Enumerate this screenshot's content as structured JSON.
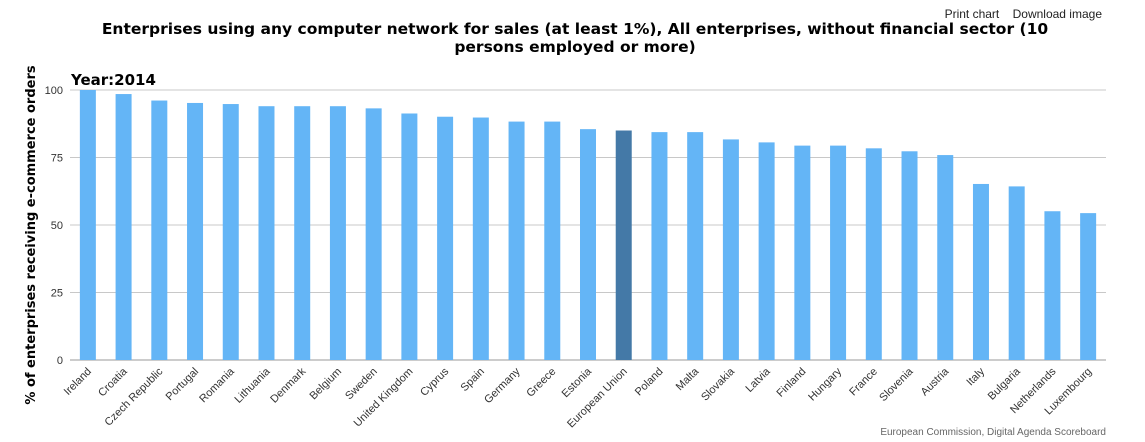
{
  "toolbar": {
    "print_label": "Print chart",
    "download_label": "Download image"
  },
  "credit": "European Commission, Digital Agenda Scoreboard",
  "colors": {
    "bar": "#64b5f6",
    "highlight": "#4479a7",
    "grid": "#c8c8c8"
  },
  "chart_data": {
    "type": "bar",
    "title": "Enterprises using any computer network for sales (at least 1%), All enterprises, without financial sector (10 persons employed or more)",
    "subtitle": "Year:2014",
    "ylabel": "% of enterprises receiving e-commerce orders",
    "ylim": [
      0,
      100
    ],
    "yticks": [
      0,
      25,
      50,
      75,
      100
    ],
    "grid": true,
    "highlight": "European Union",
    "categories": [
      "Ireland",
      "Croatia",
      "Czech Republic",
      "Portugal",
      "Romania",
      "Lithuania",
      "Denmark",
      "Belgium",
      "Sweden",
      "United Kingdom",
      "Cyprus",
      "Spain",
      "Germany",
      "Greece",
      "Estonia",
      "European Union",
      "Poland",
      "Malta",
      "Slovakia",
      "Latvia",
      "Finland",
      "Hungary",
      "France",
      "Slovenia",
      "Austria",
      "Italy",
      "Bulgaria",
      "Netherlands",
      "Luxembourg"
    ],
    "values": [
      100,
      98.5,
      96.1,
      95.2,
      94.8,
      94,
      94,
      94,
      93.2,
      91.3,
      90.1,
      89.8,
      88.3,
      88.3,
      85.5,
      85,
      84.4,
      84.4,
      81.7,
      80.6,
      79.4,
      79.4,
      78.4,
      77.3,
      75.9,
      65.2,
      64.3,
      55.1,
      54.4
    ]
  }
}
